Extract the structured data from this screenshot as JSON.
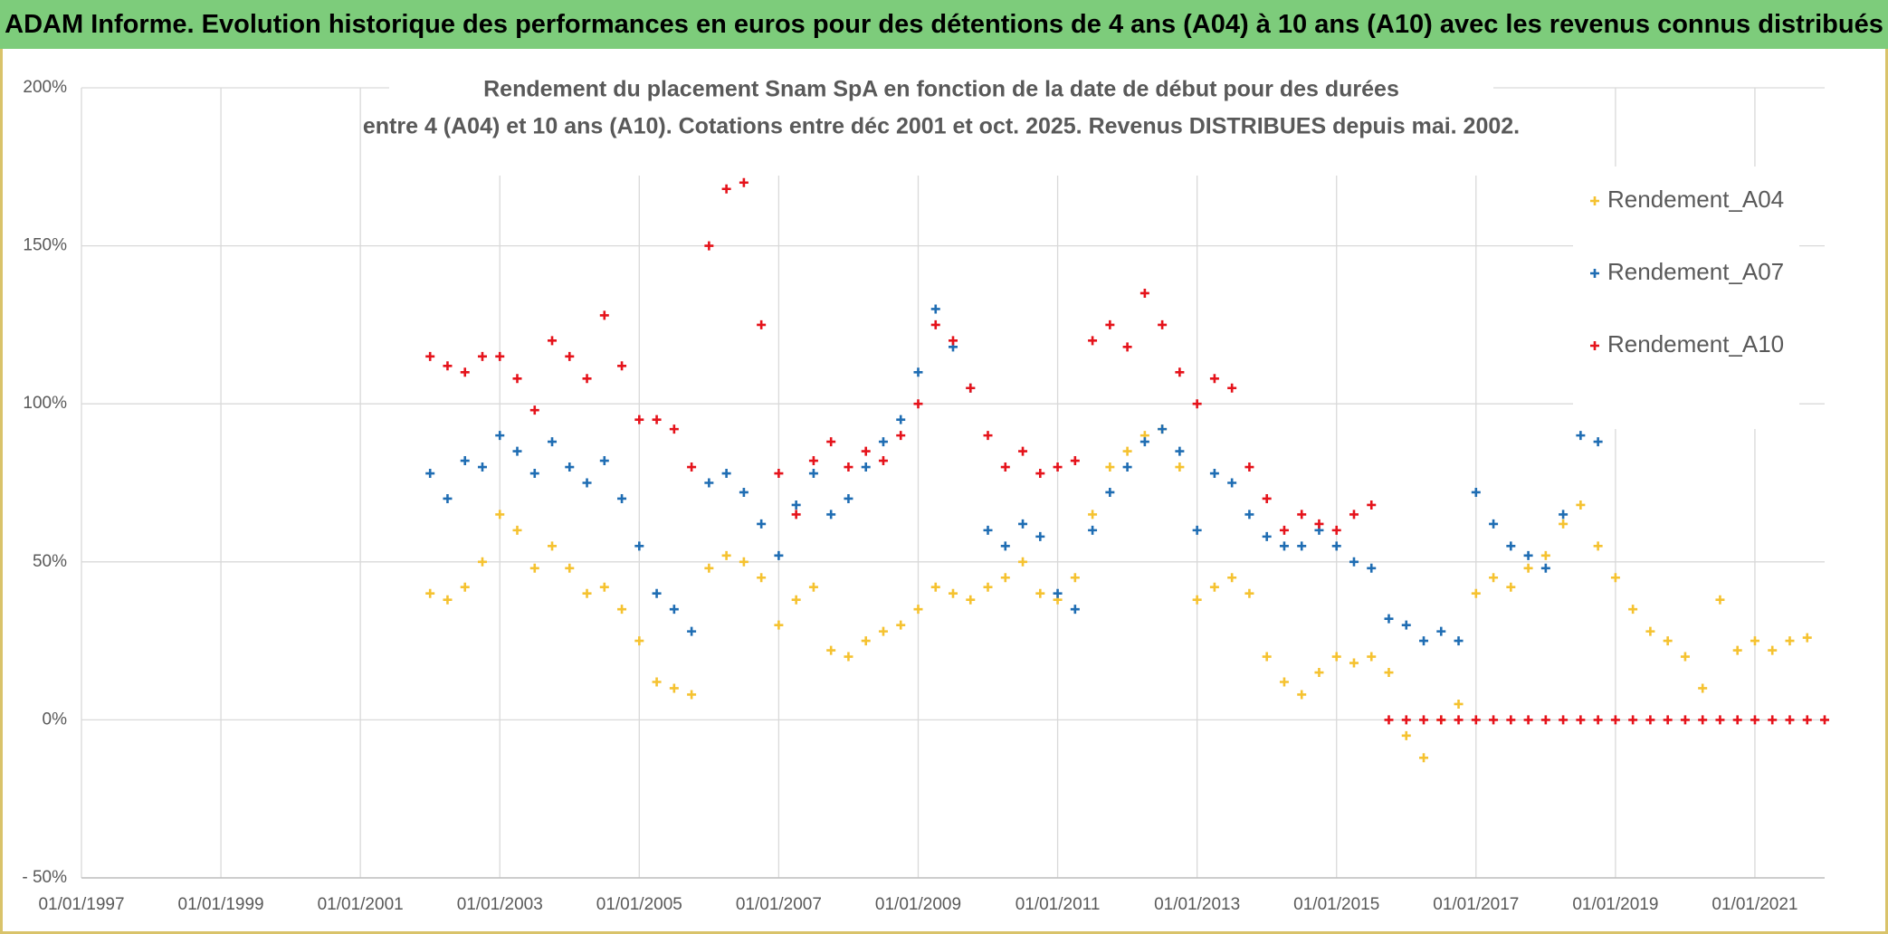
{
  "header": {
    "title": "ADAM Informe. Evolution historique des performances en euros pour des détentions de 4 ans (A04) à 10 ans (A10) avec les revenus connus distribués"
  },
  "chart_data": {
    "type": "scatter",
    "title": [
      "Rendement du placement Snam SpA en fonction de la date de début pour des durées",
      "entre 4 (A04) et 10 ans (A10). Cotations entre déc 2001 et oct. 2025. Revenus DISTRIBUES depuis mai. 2002."
    ],
    "xlim": [
      1997,
      2022
    ],
    "xticks": [
      {
        "value": 1997,
        "label": "01/01/1997"
      },
      {
        "value": 1999,
        "label": "01/01/1999"
      },
      {
        "value": 2001,
        "label": "01/01/2001"
      },
      {
        "value": 2003,
        "label": "01/01/2003"
      },
      {
        "value": 2005,
        "label": "01/01/2005"
      },
      {
        "value": 2007,
        "label": "01/01/2007"
      },
      {
        "value": 2009,
        "label": "01/01/2009"
      },
      {
        "value": 2011,
        "label": "01/01/2011"
      },
      {
        "value": 2013,
        "label": "01/01/2013"
      },
      {
        "value": 2015,
        "label": "01/01/2015"
      },
      {
        "value": 2017,
        "label": "01/01/2017"
      },
      {
        "value": 2019,
        "label": "01/01/2019"
      },
      {
        "value": 2021,
        "label": "01/01/2021"
      }
    ],
    "ylim": [
      -50,
      200
    ],
    "yticks": [
      {
        "value": -50,
        "label": "- 50%"
      },
      {
        "value": 0,
        "label": "0%"
      },
      {
        "value": 50,
        "label": "50%"
      },
      {
        "value": 100,
        "label": "100%"
      },
      {
        "value": 150,
        "label": "150%"
      },
      {
        "value": 200,
        "label": "200%"
      }
    ],
    "grid": true,
    "legend": "top-right",
    "series": [
      {
        "name": "Rendement_A04",
        "color": "#f5c230",
        "x": [
          2002,
          2002.25,
          2002.5,
          2002.75,
          2003,
          2003.25,
          2003.5,
          2003.75,
          2004,
          2004.25,
          2004.5,
          2004.75,
          2005,
          2005.25,
          2005.5,
          2005.75,
          2006,
          2006.25,
          2006.5,
          2006.75,
          2007,
          2007.25,
          2007.5,
          2007.75,
          2008,
          2008.25,
          2008.5,
          2008.75,
          2009,
          2009.25,
          2009.5,
          2009.75,
          2010,
          2010.25,
          2010.5,
          2010.75,
          2011,
          2011.25,
          2011.5,
          2011.75,
          2012,
          2012.25,
          2012.5,
          2012.75,
          2013,
          2013.25,
          2013.5,
          2013.75,
          2014,
          2014.25,
          2014.5,
          2014.75,
          2015,
          2015.25,
          2015.5,
          2015.75,
          2016,
          2016.25,
          2016.5,
          2016.75,
          2017,
          2017.25,
          2017.5,
          2017.75,
          2018,
          2018.25,
          2018.5,
          2018.75,
          2019,
          2019.25,
          2019.5,
          2019.75,
          2020,
          2020.25,
          2020.5,
          2020.75,
          2021,
          2021.25,
          2021.5,
          2021.75
        ],
        "values": [
          40,
          38,
          42,
          50,
          65,
          60,
          48,
          55,
          48,
          40,
          42,
          35,
          25,
          12,
          10,
          8,
          48,
          52,
          50,
          45,
          30,
          38,
          42,
          22,
          20,
          25,
          28,
          30,
          35,
          42,
          40,
          38,
          42,
          45,
          50,
          40,
          38,
          45,
          65,
          80,
          85,
          90,
          92,
          80,
          38,
          42,
          45,
          40,
          20,
          12,
          8,
          15,
          20,
          18,
          20,
          15,
          -5,
          -12,
          0,
          5,
          40,
          45,
          42,
          48,
          52,
          62,
          68,
          55,
          45,
          35,
          28,
          25,
          20,
          10,
          38,
          22,
          25,
          22,
          25,
          26
        ]
      },
      {
        "name": "Rendement_A07",
        "color": "#1f6db3",
        "x": [
          2002,
          2002.25,
          2002.5,
          2002.75,
          2003,
          2003.25,
          2003.5,
          2003.75,
          2004,
          2004.25,
          2004.5,
          2004.75,
          2005,
          2005.25,
          2005.5,
          2005.75,
          2006,
          2006.25,
          2006.5,
          2006.75,
          2007,
          2007.25,
          2007.5,
          2007.75,
          2008,
          2008.25,
          2008.5,
          2008.75,
          2009,
          2009.25,
          2009.5,
          2009.75,
          2010,
          2010.25,
          2010.5,
          2010.75,
          2011,
          2011.25,
          2011.5,
          2011.75,
          2012,
          2012.25,
          2012.5,
          2012.75,
          2013,
          2013.25,
          2013.5,
          2013.75,
          2014,
          2014.25,
          2014.5,
          2014.75,
          2015,
          2015.25,
          2015.5,
          2015.75,
          2016,
          2016.25,
          2016.5,
          2016.75,
          2017,
          2017.25,
          2017.5,
          2017.75,
          2018,
          2018.25,
          2018.5,
          2018.75
        ],
        "values": [
          78,
          70,
          82,
          80,
          90,
          85,
          78,
          88,
          80,
          75,
          82,
          70,
          55,
          40,
          35,
          28,
          75,
          78,
          72,
          62,
          52,
          68,
          78,
          65,
          70,
          80,
          88,
          95,
          110,
          130,
          118,
          105,
          60,
          55,
          62,
          58,
          40,
          35,
          60,
          72,
          80,
          88,
          92,
          85,
          60,
          78,
          75,
          65,
          58,
          55,
          55,
          60,
          55,
          50,
          48,
          32,
          30,
          25,
          28,
          25,
          72,
          62,
          55,
          52,
          48,
          65,
          90,
          88
        ]
      },
      {
        "name": "Rendement_A10",
        "color": "#e5131b",
        "x": [
          2002,
          2002.25,
          2002.5,
          2002.75,
          2003,
          2003.25,
          2003.5,
          2003.75,
          2004,
          2004.25,
          2004.5,
          2004.75,
          2005,
          2005.25,
          2005.5,
          2005.75,
          2006,
          2006.25,
          2006.5,
          2006.75,
          2007,
          2007.25,
          2007.5,
          2007.75,
          2008,
          2008.25,
          2008.5,
          2008.75,
          2009,
          2009.25,
          2009.5,
          2009.75,
          2010,
          2010.25,
          2010.5,
          2010.75,
          2011,
          2011.25,
          2011.5,
          2011.75,
          2012,
          2012.25,
          2012.5,
          2012.75,
          2013,
          2013.25,
          2013.5,
          2013.75,
          2014,
          2014.25,
          2014.5,
          2014.75,
          2015,
          2015.25,
          2015.5,
          2015.75,
          2016,
          2016.25,
          2016.5,
          2016.75,
          2017,
          2017.25,
          2017.5,
          2017.75,
          2018,
          2018.25,
          2018.5,
          2018.75,
          2019,
          2019.25,
          2019.5,
          2019.75,
          2020,
          2020.25,
          2020.5,
          2020.75,
          2021,
          2021.25,
          2021.5,
          2021.75,
          2022
        ],
        "values": [
          115,
          112,
          110,
          115,
          115,
          108,
          98,
          120,
          115,
          108,
          128,
          112,
          95,
          95,
          92,
          80,
          150,
          168,
          170,
          125,
          78,
          65,
          82,
          88,
          80,
          85,
          82,
          90,
          100,
          125,
          120,
          105,
          90,
          80,
          85,
          78,
          80,
          82,
          120,
          125,
          118,
          135,
          125,
          110,
          100,
          108,
          105,
          80,
          70,
          60,
          65,
          62,
          60,
          65,
          68,
          0,
          0,
          0,
          0,
          0,
          0,
          0,
          0,
          0,
          0,
          0,
          0,
          0,
          0,
          0,
          0,
          0,
          0,
          0,
          0,
          0,
          0,
          0,
          0,
          0,
          0
        ]
      }
    ]
  }
}
